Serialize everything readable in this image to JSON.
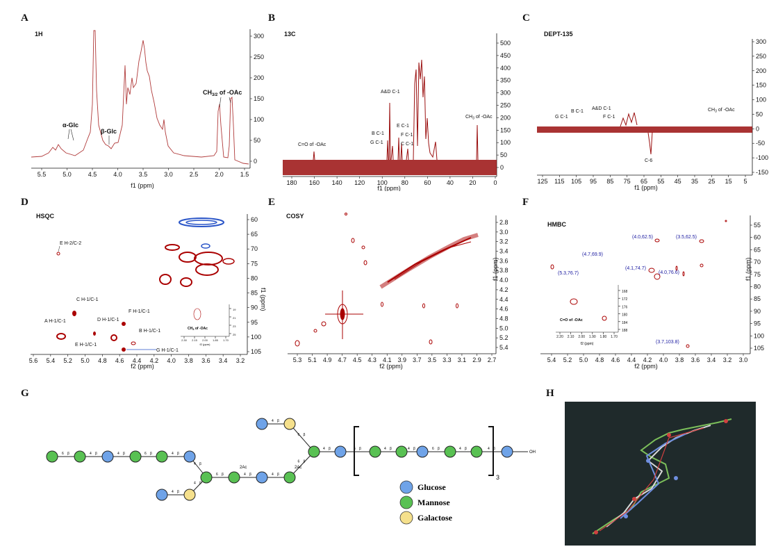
{
  "panels": {
    "A": {
      "letter": "A",
      "title": "1H",
      "xlabel": "f1 (ppm)",
      "xticks": [
        "5.5",
        "5.0",
        "4.5",
        "4.0",
        "3.5",
        "3.0",
        "2.5",
        "2.0",
        "1.5"
      ],
      "yticks": [
        "0",
        "50",
        "100",
        "150",
        "200",
        "250",
        "300"
      ],
      "labels": {
        "aglc": "α-Glc",
        "bglc": "β-Glc",
        "oac_pre": "CH",
        "oac_sub": "3/2",
        "oac_post": " of -OAc"
      }
    },
    "B": {
      "letter": "B",
      "title": "13C",
      "xlabel": "f1 (ppm)",
      "xticks": [
        "180",
        "160",
        "140",
        "120",
        "100",
        "80",
        "60",
        "40",
        "20",
        "0"
      ],
      "yticks": [
        "0",
        "50",
        "100",
        "150",
        "200",
        "250",
        "300",
        "350",
        "400",
        "450",
        "500"
      ],
      "labels": {
        "co": "C=O of -OAc",
        "ad": "A&D C-1",
        "b": "B C-1",
        "g": "G C-1",
        "e": "E C-1",
        "f": "F C-1",
        "c": "C C-1",
        "ch3": "CH",
        "ch3sub": "3",
        "ch3post": " of -OAc"
      }
    },
    "C": {
      "letter": "C",
      "title": "DEPT-135",
      "xlabel": "f1 (ppm)",
      "xticks": [
        "125",
        "115",
        "105",
        "95",
        "85",
        "75",
        "65",
        "55",
        "45",
        "35",
        "25",
        "15",
        "5"
      ],
      "yticks": [
        "-150",
        "-100",
        "-50",
        "0",
        "50",
        "100",
        "150",
        "200",
        "250",
        "300"
      ],
      "labels": {
        "g": "G C-1",
        "b": "B C-1",
        "ad": "A&D C-1",
        "f": "F C-1",
        "c6": "C-6",
        "ch3": "CH",
        "ch3sub": "3",
        "ch3post": " of -OAc"
      }
    },
    "D": {
      "letter": "D",
      "title": "HSQC",
      "xlabel": "f2 (ppm)",
      "ylabel": "f1 (ppm)",
      "xticks": [
        "5.6",
        "5.4",
        "5.2",
        "5.0",
        "4.8",
        "4.6",
        "4.4",
        "4.2",
        "4.0",
        "3.8",
        "3.6",
        "3.4",
        "3.2"
      ],
      "yticks": [
        "60",
        "65",
        "70",
        "75",
        "80",
        "85",
        "90",
        "95",
        "100",
        "105"
      ],
      "labels": {
        "e2": "E H-2/C-2",
        "c": "C H-1/C-1",
        "a": "A H-1/C-1",
        "d": "D H-1/C-1",
        "f": "F H-1/C-1",
        "b": "B H-1/C-1",
        "e": "E H-1/C-1",
        "g": "G H-1/C-1",
        "inset": "CH",
        "insetsub": "3",
        "insetpost": " of -OAc"
      },
      "inset_xticks": [
        "2.30",
        "2.15",
        "2.00",
        "1.85",
        "1.70"
      ],
      "inset_yticks": [
        "19",
        "21",
        "23",
        "25"
      ],
      "inset_xlabel": "f2 (ppm)",
      "inset_ylabel": "f1 (ppm)"
    },
    "E": {
      "letter": "E",
      "title": "COSY",
      "xlabel": "f2 (ppm)",
      "ylabel": "f1 (ppm)",
      "xticks": [
        "5.3",
        "5.1",
        "4.9",
        "4.7",
        "4.5",
        "4.3",
        "4.1",
        "3.9",
        "3.7",
        "3.5",
        "3.3",
        "3.1",
        "2.9",
        "2.7"
      ],
      "yticks": [
        "2.8",
        "3.0",
        "3.2",
        "3.4",
        "3.6",
        "3.8",
        "4.0",
        "4.2",
        "4.4",
        "4.6",
        "4.8",
        "5.0",
        "5.2",
        "5.4"
      ]
    },
    "F": {
      "letter": "F",
      "title": "HMBC",
      "xlabel": "f2 (ppm)",
      "ylabel": "f1 (ppm)",
      "xticks": [
        "5.4",
        "5.2",
        "5.0",
        "4.8",
        "4.6",
        "4.4",
        "4.2",
        "4.0",
        "3.8",
        "3.6",
        "3.4",
        "3.2",
        "3.0"
      ],
      "yticks": [
        "55",
        "60",
        "65",
        "70",
        "75",
        "80",
        "85",
        "90",
        "95",
        "100",
        "105"
      ],
      "labels": {
        "p1": "(4.0,62.5)",
        "p2": "(3.5,62.5)",
        "p3": "(4.7,69.9)",
        "p4": "(4.1,74.7)",
        "p5": "(5.3,76.7)",
        "p6": "(4.0,76.6)",
        "p7": "(3.7,103.8)",
        "inset": "C=O of -OAc"
      },
      "inset_xticks": [
        "2.20",
        "2.10",
        "2.00",
        "1.90",
        "1.80",
        "1.70"
      ],
      "inset_yticks": [
        "168",
        "172",
        "176",
        "180",
        "184",
        "188"
      ],
      "inset_xlabel": "f2 (ppm)",
      "inset_ylabel": "f1 (ppm)"
    },
    "G": {
      "letter": "G",
      "link_6": "6",
      "link_4": "4",
      "beta": "β",
      "ac": "2Ac",
      "repeat": "3",
      "oh": "OH",
      "legend": [
        {
          "name": "Glucose",
          "color": "#6fa3e8"
        },
        {
          "name": "Mannose",
          "color": "#59c153"
        },
        {
          "name": "Galactose",
          "color": "#f5e08c"
        }
      ]
    },
    "H": {
      "letter": "H"
    }
  },
  "colors": {
    "spectrum": "#9a0f0f",
    "line": "#b85050",
    "neg": "#2a55c8",
    "hmbc_label": "#1a1aa0"
  }
}
